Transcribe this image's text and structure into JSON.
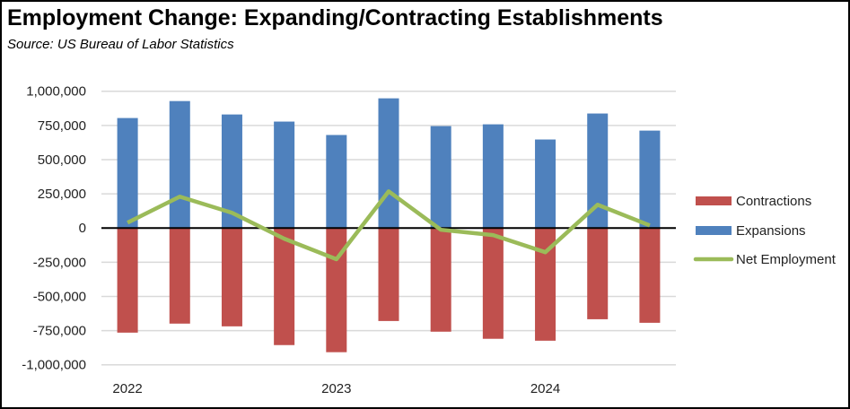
{
  "chart_data": {
    "type": "bar",
    "title": "Employment Change:  Expanding/Contracting Establishments",
    "subtitle": "Source:  US Bureau of Labor Statistics",
    "categories": [
      "2022",
      "",
      "",
      "",
      "2023",
      "",
      "",
      "",
      "2024",
      "",
      ""
    ],
    "series": [
      {
        "name": "Contractions",
        "type": "bar",
        "color": "#C0504D",
        "values": [
          -765000,
          -699000,
          -719000,
          -856000,
          -908000,
          -680000,
          -758000,
          -810000,
          -824000,
          -667000,
          -693000
        ]
      },
      {
        "name": "Expansions",
        "type": "bar",
        "color": "#4F81BD",
        "values": [
          804000,
          928000,
          830000,
          778000,
          680000,
          948000,
          745000,
          758000,
          647000,
          837000,
          712000
        ]
      },
      {
        "name": "Net Employment",
        "type": "line",
        "color": "#9BBB59",
        "values": [
          39000,
          229000,
          111000,
          -78000,
          -228000,
          268000,
          -13000,
          -52000,
          -177000,
          170000,
          19000
        ]
      }
    ],
    "y_ticks": [
      "1,000,000",
      "750,000",
      "500,000",
      "250,000",
      "0",
      "-250,000",
      "-500,000",
      "-750,000",
      "-1,000,000"
    ],
    "ylim": [
      -1000000,
      1000000
    ],
    "grid": true,
    "legend": "right"
  }
}
